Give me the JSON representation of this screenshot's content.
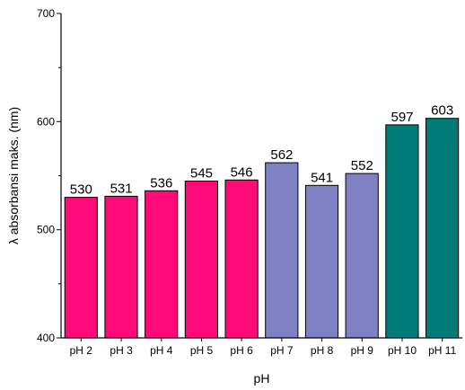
{
  "chart_data": {
    "type": "bar",
    "title": "",
    "xlabel": "pH",
    "ylabel": "λ absorbansi maks. (nm)",
    "categories": [
      "pH 2",
      "pH 3",
      "pH 4",
      "pH 5",
      "pH 6",
      "pH 7",
      "pH 8",
      "pH 9",
      "pH 10",
      "pH 11"
    ],
    "values": [
      530,
      531,
      536,
      545,
      546,
      562,
      541,
      552,
      597,
      603
    ],
    "data_labels": [
      "530",
      "531",
      "536",
      "545",
      "546",
      "562",
      "541",
      "552",
      "597",
      "603"
    ],
    "bar_colors": [
      "#ff0a78",
      "#ff0a78",
      "#ff0a78",
      "#ff0a78",
      "#ff0a78",
      "#8080c4",
      "#8080c4",
      "#8080c4",
      "#007c78",
      "#007c78"
    ],
    "ylim": [
      400,
      700
    ],
    "y_ticks": [
      400,
      500,
      600,
      700
    ],
    "y_tick_labels": [
      "400",
      "500",
      "600",
      "700"
    ],
    "grid": false,
    "legend": "none"
  }
}
